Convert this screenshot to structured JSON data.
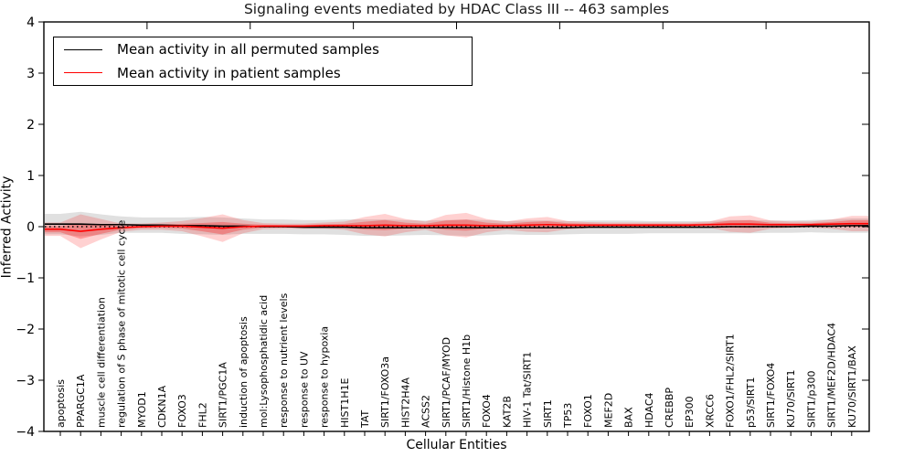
{
  "page": {
    "background": "#ffffff"
  },
  "chart_data": {
    "type": "line",
    "title": "Signaling events mediated by HDAC Class III -- 463 samples",
    "xlabel": "Cellular Entities",
    "ylabel": "Inferred Activity",
    "ylim": [
      -4,
      4
    ],
    "yticks": [
      4,
      3,
      2,
      1,
      0,
      -1,
      -2,
      -3,
      -4
    ],
    "grid": false,
    "legend_position": "upper-left",
    "zero_line_style": "dotted",
    "categories": [
      "apoptosis",
      "PPARGC1A",
      "muscle cell differentiation",
      "regulation of S phase of mitotic cell cycle",
      "MYOD1",
      "CDKN1A",
      "FOXO3",
      "FHL2",
      "SIRT1/PGC1A",
      "induction of apoptosis",
      "mol:Lysophosphatidic acid",
      "response to nutrient levels",
      "response to UV",
      "response to hypoxia",
      "HIST1H1E",
      "TAT",
      "SIRT1/FOXO3a",
      "HIST2H4A",
      "ACSS2",
      "SIRT1/PCAF/MYOD",
      "SIRT1/Histone H1b",
      "FOXO4",
      "KAT2B",
      "HIV-1 Tat/SIRT1",
      "SIRT1",
      "TP53",
      "FOXO1",
      "MEF2D",
      "BAX",
      "HDAC4",
      "CREBBP",
      "EP300",
      "XRCC6",
      "FOXO1/FHL2/SIRT1",
      "p53/SIRT1",
      "SIRT1/FOXO4",
      "KU70/SIRT1",
      "SIRT1/p300",
      "SIRT1/MEF2D/HDAC4",
      "KU70/SIRT1/BAX"
    ],
    "series": [
      {
        "name": "Mean activity in all permuted samples",
        "color": "#000000",
        "line_width": 1.6,
        "values": [
          0.05,
          0.05,
          0.04,
          0.04,
          0.03,
          0.03,
          0.02,
          0.02,
          0.01,
          0.01,
          0.0,
          0.0,
          -0.01,
          -0.01,
          -0.01,
          -0.02,
          -0.02,
          -0.02,
          -0.02,
          -0.02,
          -0.02,
          -0.02,
          -0.02,
          -0.02,
          -0.02,
          -0.02,
          -0.01,
          -0.01,
          -0.01,
          -0.01,
          -0.01,
          -0.01,
          -0.01,
          0.0,
          0.0,
          0.0,
          0.0,
          0.01,
          0.01,
          0.02
        ],
        "band_halfwidth": [
          0.2,
          0.24,
          0.2,
          0.16,
          0.15,
          0.15,
          0.16,
          0.17,
          0.17,
          0.15,
          0.14,
          0.14,
          0.14,
          0.14,
          0.15,
          0.16,
          0.16,
          0.15,
          0.14,
          0.15,
          0.16,
          0.15,
          0.13,
          0.14,
          0.14,
          0.13,
          0.13,
          0.13,
          0.13,
          0.12,
          0.12,
          0.12,
          0.12,
          0.13,
          0.13,
          0.12,
          0.12,
          0.12,
          0.13,
          0.14
        ],
        "band_color": "#000000",
        "band_opacity": 0.12
      },
      {
        "name": "Mean activity in patient samples",
        "color": "#ff0000",
        "line_width": 1.6,
        "values": [
          -0.05,
          -0.09,
          -0.05,
          -0.02,
          0.0,
          0.01,
          0.01,
          -0.01,
          -0.03,
          0.0,
          0.01,
          0.01,
          0.01,
          0.02,
          0.02,
          0.02,
          0.03,
          0.02,
          0.02,
          0.03,
          0.03,
          0.02,
          0.02,
          0.03,
          0.04,
          0.03,
          0.03,
          0.03,
          0.03,
          0.03,
          0.03,
          0.03,
          0.04,
          0.05,
          0.05,
          0.04,
          0.04,
          0.04,
          0.05,
          0.06
        ],
        "band_halfwidth": [
          0.13,
          0.33,
          0.2,
          0.08,
          0.06,
          0.07,
          0.1,
          0.18,
          0.27,
          0.13,
          0.06,
          0.05,
          0.05,
          0.06,
          0.08,
          0.17,
          0.22,
          0.13,
          0.08,
          0.2,
          0.24,
          0.13,
          0.08,
          0.13,
          0.15,
          0.08,
          0.06,
          0.05,
          0.05,
          0.05,
          0.05,
          0.05,
          0.06,
          0.15,
          0.17,
          0.08,
          0.06,
          0.06,
          0.09,
          0.15
        ],
        "band_color": "#ff0000",
        "band_opacity": 0.18,
        "band_inner_ratio": 0.45,
        "band_inner_opacity": 0.28
      }
    ]
  }
}
